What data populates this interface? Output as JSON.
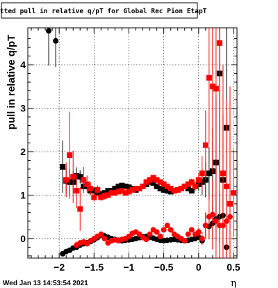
{
  "chart_data": {
    "type": "scatter",
    "title": "Fitted pull in relative q/pT for Global Rec Pion EtapT",
    "xlabel": "η",
    "ylabel": "pull in relative q/pT",
    "xlim": [
      -2.45,
      0.55
    ],
    "ylim": [
      -0.45,
      4.85
    ],
    "x_ticks": [
      -2,
      -1.5,
      -1,
      -0.5,
      0,
      0.5
    ],
    "x_tick_labels": [
      "−2",
      "−1.5",
      "−1",
      "−0.5",
      "0",
      "0.5"
    ],
    "y_ticks": [
      0,
      1,
      2,
      3,
      4
    ],
    "y_tick_labels": [
      "0",
      "1",
      "2",
      "3",
      "4"
    ],
    "grid": true,
    "timestamp": "Wed Jan 13 14:53:54 2021",
    "series": [
      {
        "marker": "circle",
        "color": "#000000",
        "x": [
          -2.15,
          -2.05,
          -1.95,
          -1.9,
          -1.85,
          -1.8,
          -1.75,
          -1.7,
          -1.65,
          -1.6,
          -1.55,
          -1.5,
          -1.45,
          -1.4,
          -1.35,
          -1.3,
          -1.25,
          -1.2,
          -1.15,
          -1.1,
          -1.05,
          -1.0,
          -0.95,
          -0.9,
          -0.85,
          -0.8,
          -0.75,
          -0.7,
          -0.65,
          -0.6,
          -0.55,
          -0.5,
          -0.45,
          -0.4,
          -0.35,
          -0.3,
          -0.25,
          -0.2,
          -0.15,
          -0.1,
          -0.05,
          0.0,
          0.05,
          0.1,
          0.15,
          0.2,
          0.25,
          0.3,
          0.35,
          0.4
        ],
        "y": [
          4.78,
          4.55,
          -0.35,
          -0.3,
          -0.27,
          -0.22,
          -0.2,
          -0.15,
          -0.12,
          -0.1,
          -0.07,
          -0.03,
          0.02,
          0.08,
          0.06,
          0.03,
          0.0,
          -0.02,
          -0.04,
          -0.05,
          -0.04,
          -0.03,
          -0.02,
          0.0,
          0.02,
          0.04,
          0.05,
          0.03,
          0.01,
          -0.02,
          -0.04,
          -0.05,
          -0.04,
          -0.03,
          -0.02,
          -0.03,
          -0.04,
          -0.05,
          -0.04,
          -0.02,
          0.0,
          0.03,
          -0.05,
          0.3,
          0.28,
          0.35,
          0.45,
          0.5,
          0.53,
          -0.2
        ],
        "yerr": [
          0.8,
          0.6,
          0.05,
          0.04,
          0.04,
          0.04,
          0.03,
          0.03,
          0.03,
          0.03,
          0.03,
          0.03,
          0.03,
          0.03,
          0.03,
          0.03,
          0.03,
          0.03,
          0.03,
          0.03,
          0.03,
          0.03,
          0.03,
          0.03,
          0.03,
          0.03,
          0.03,
          0.03,
          0.03,
          0.03,
          0.03,
          0.03,
          0.03,
          0.03,
          0.03,
          0.03,
          0.03,
          0.03,
          0.03,
          0.03,
          0.03,
          0.03,
          0.08,
          0.3,
          0.3,
          0.4,
          0.5,
          0.6,
          0.7,
          0.5
        ]
      },
      {
        "marker": "square",
        "color": "#000000",
        "x": [
          -1.95,
          -1.9,
          -1.85,
          -1.8,
          -1.75,
          -1.7,
          -1.65,
          -1.6,
          -1.55,
          -1.5,
          -1.45,
          -1.4,
          -1.35,
          -1.3,
          -1.25,
          -1.2,
          -1.15,
          -1.1,
          -1.05,
          -1.0,
          -0.95,
          -0.9,
          -0.85,
          -0.8,
          -0.75,
          -0.7,
          -0.65,
          -0.6,
          -0.55,
          -0.5,
          -0.45,
          -0.4,
          -0.35,
          -0.3,
          -0.25,
          -0.2,
          -0.15,
          -0.1,
          -0.05,
          0.0,
          0.05,
          0.1,
          0.15,
          0.2,
          0.25,
          0.3,
          0.35,
          0.4
        ],
        "y": [
          1.65,
          1.33,
          1.3,
          1.3,
          1.44,
          1.42,
          1.2,
          1.2,
          1.1,
          1.1,
          1.05,
          1.02,
          1.05,
          1.1,
          1.1,
          1.15,
          1.2,
          1.22,
          1.2,
          1.18,
          1.15,
          1.12,
          1.15,
          1.2,
          1.25,
          1.3,
          1.28,
          1.2,
          1.15,
          1.12,
          1.1,
          1.08,
          1.1,
          1.12,
          1.15,
          1.2,
          1.15,
          1.1,
          1.2,
          1.25,
          1.3,
          1.35,
          1.5,
          1.55,
          1.75,
          3.8,
          1.35,
          2.55
        ],
        "yerr": [
          0.6,
          0.3,
          0.3,
          0.25,
          0.2,
          0.15,
          0.1,
          0.1,
          0.08,
          0.08,
          0.06,
          0.06,
          0.06,
          0.06,
          0.06,
          0.06,
          0.06,
          0.06,
          0.06,
          0.06,
          0.06,
          0.06,
          0.06,
          0.06,
          0.06,
          0.06,
          0.06,
          0.06,
          0.06,
          0.06,
          0.06,
          0.06,
          0.06,
          0.06,
          0.06,
          0.06,
          0.06,
          0.06,
          0.08,
          0.15,
          0.3,
          0.4,
          0.6,
          1.0,
          1.5,
          2.5,
          1.5,
          3.0
        ]
      },
      {
        "marker": "circle",
        "color": "#ff0000",
        "x": [
          -1.75,
          -1.7,
          -1.65,
          -1.6,
          -1.55,
          -1.5,
          -1.45,
          -1.4,
          -1.35,
          -1.3,
          -1.25,
          -1.2,
          -1.15,
          -1.1,
          -1.05,
          -1.0,
          -0.95,
          -0.9,
          -0.85,
          -0.8,
          -0.75,
          -0.7,
          -0.65,
          -0.6,
          -0.55,
          -0.5,
          -0.45,
          -0.4,
          -0.35,
          -0.3,
          -0.25,
          -0.2,
          -0.15,
          -0.1,
          -0.05,
          0.0,
          0.05,
          0.1,
          0.15,
          0.2,
          0.25,
          0.3,
          0.35,
          0.4,
          0.45
        ],
        "y": [
          -0.15,
          -0.1,
          -0.08,
          -0.12,
          -0.05,
          0.0,
          0.05,
          0.1,
          0.0,
          -0.1,
          -0.05,
          -0.03,
          -0.05,
          -0.02,
          0.0,
          0.05,
          0.12,
          0.15,
          0.1,
          0.02,
          -0.02,
          0.1,
          0.2,
          0.15,
          0.05,
          0.2,
          0.3,
          0.2,
          0.1,
          0.05,
          0.0,
          -0.05,
          0.1,
          0.2,
          0.1,
          0.15,
          0.0,
          0.3,
          0.5,
          0.55,
          0.4,
          0.3,
          0.3,
          0.4,
          0.5
        ],
        "yerr": [
          0.08,
          0.06,
          0.05,
          0.05,
          0.05,
          0.04,
          0.04,
          0.04,
          0.04,
          0.04,
          0.04,
          0.04,
          0.04,
          0.04,
          0.04,
          0.04,
          0.04,
          0.04,
          0.04,
          0.04,
          0.04,
          0.04,
          0.04,
          0.04,
          0.04,
          0.04,
          0.04,
          0.04,
          0.04,
          0.04,
          0.04,
          0.04,
          0.04,
          0.05,
          0.06,
          0.1,
          0.15,
          0.3,
          0.5,
          0.8,
          1.2,
          1.5,
          2.0,
          2.5,
          3.0
        ]
      },
      {
        "marker": "square",
        "color": "#ff0000",
        "x": [
          -1.9,
          -1.85,
          -1.8,
          -1.75,
          -1.7,
          -1.65,
          -1.6,
          -1.55,
          -1.5,
          -1.45,
          -1.4,
          -1.35,
          -1.3,
          -1.25,
          -1.2,
          -1.15,
          -1.1,
          -1.05,
          -1.0,
          -0.95,
          -0.9,
          -0.85,
          -0.8,
          -0.75,
          -0.7,
          -0.65,
          -0.6,
          -0.55,
          -0.5,
          -0.45,
          -0.4,
          -0.35,
          -0.3,
          -0.25,
          -0.2,
          -0.15,
          -0.1,
          -0.05,
          0.0,
          0.05,
          0.1,
          0.15,
          0.2,
          0.25,
          0.3,
          0.35,
          0.4,
          0.45,
          0.5
        ],
        "y": [
          1.35,
          1.92,
          1.42,
          1.1,
          0.68,
          1.35,
          1.25,
          1.15,
          0.95,
          1.12,
          0.95,
          0.98,
          1.0,
          1.05,
          1.05,
          1.08,
          1.1,
          1.05,
          1.08,
          1.12,
          1.15,
          1.15,
          1.2,
          1.3,
          1.35,
          1.4,
          1.35,
          1.3,
          1.25,
          1.2,
          1.15,
          1.1,
          1.12,
          1.15,
          1.2,
          1.25,
          1.3,
          1.2,
          1.35,
          1.5,
          2.15,
          3.7,
          3.5,
          3.45,
          4.5,
          1.5,
          1.2,
          0.8,
          1.05
        ],
        "yerr": [
          0.4,
          1.0,
          0.6,
          0.4,
          0.5,
          0.3,
          0.2,
          0.15,
          0.1,
          0.1,
          0.08,
          0.08,
          0.06,
          0.06,
          0.06,
          0.06,
          0.06,
          0.06,
          0.06,
          0.06,
          0.06,
          0.06,
          0.06,
          0.06,
          0.06,
          0.06,
          0.06,
          0.06,
          0.06,
          0.06,
          0.06,
          0.06,
          0.06,
          0.06,
          0.06,
          0.06,
          0.08,
          0.1,
          0.15,
          0.4,
          0.8,
          1.5,
          2.0,
          2.5,
          3.0,
          2.5,
          2.0,
          1.5,
          1.0
        ]
      }
    ]
  }
}
